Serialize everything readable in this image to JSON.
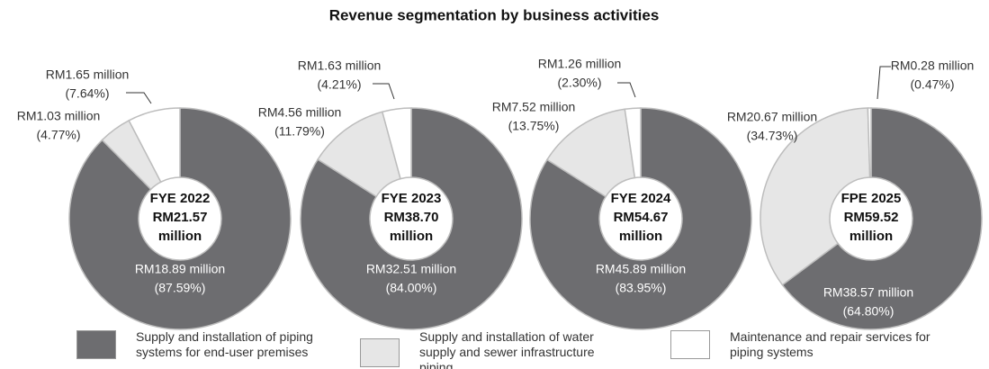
{
  "title": "Revenue segmentation by business activities",
  "categories": [
    "Supply and installation of piping systems for end-user premises",
    "Supply and installation of water supply and sewer infrastructure piping",
    "Maintenance and repair services for piping systems"
  ],
  "colors": [
    "#6d6d70",
    "#e6e6e6",
    "#ffffff"
  ],
  "chart_data": [
    {
      "type": "pie",
      "center_label": [
        "FYE 2022",
        "RM21.57",
        "million"
      ],
      "values": [
        87.59,
        4.77,
        7.64
      ],
      "value_labels": [
        "(87.59%)",
        "(4.77%)",
        "(7.64%)"
      ],
      "amount_labels": [
        "RM18.89 million",
        "RM1.03 million",
        "RM1.65 million"
      ]
    },
    {
      "type": "pie",
      "center_label": [
        "FYE 2023",
        "RM38.70",
        "million"
      ],
      "values": [
        84.0,
        11.79,
        4.21
      ],
      "value_labels": [
        "(84.00%)",
        "(11.79%)",
        "(4.21%)"
      ],
      "amount_labels": [
        "RM32.51 million",
        "RM4.56 million",
        "RM1.63 million"
      ]
    },
    {
      "type": "pie",
      "center_label": [
        "FYE 2024",
        "RM54.67",
        "million"
      ],
      "values": [
        83.95,
        13.75,
        2.3
      ],
      "value_labels": [
        "(83.95%)",
        "(13.75%)",
        "(2.30%)"
      ],
      "amount_labels": [
        "RM45.89 million",
        "RM7.52 million",
        "RM1.26 million"
      ]
    },
    {
      "type": "pie",
      "center_label": [
        "FPE 2025",
        "RM59.52",
        "million"
      ],
      "values": [
        64.8,
        34.73,
        0.47
      ],
      "value_labels": [
        "(64.80%)",
        "(34.73%)",
        "(0.47%)"
      ],
      "amount_labels": [
        "RM38.57 million",
        "RM20.67 million",
        "RM0.28 million"
      ]
    }
  ]
}
